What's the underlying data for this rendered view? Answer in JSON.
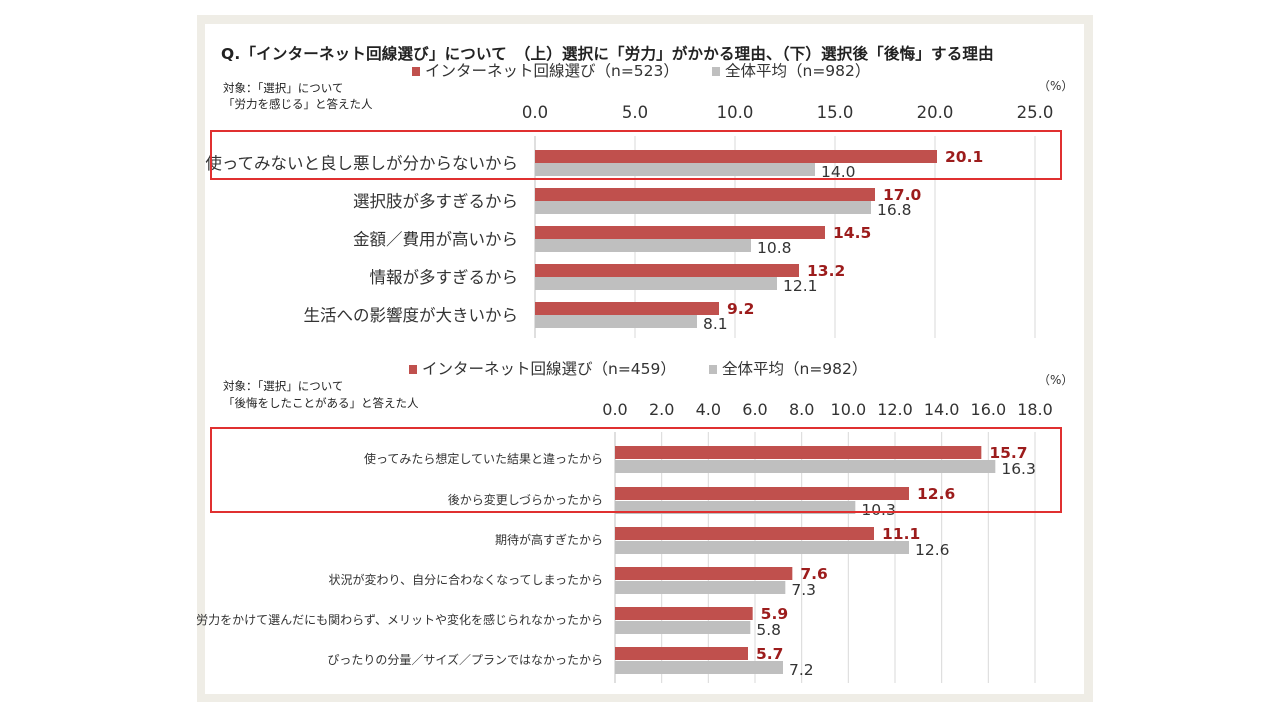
{
  "title": "Q.「インターネット回線選び」について　（上）選択に「労力」がかかる理由、（下）選択後「後悔」する理由",
  "colors": {
    "primary": "#c0504d",
    "secondary": "#bfbfbf",
    "value_primary": "#9c1c1c",
    "value_secondary": "#333333",
    "highlight": "#e03030"
  },
  "chart_data": [
    {
      "type": "bar",
      "orientation": "horizontal",
      "target_line1": "対象：「選択」について",
      "target_line2": "「労力を感じる」と答えた人",
      "unit": "（%）",
      "categories": [
        "使ってみないと良し悪しが分からないから",
        "選択肢が多すぎるから",
        "金額／費用が高いから",
        "情報が多すぎるから",
        "生活への影響度が大きいから"
      ],
      "series": [
        {
          "name": "インターネット回線選び（n=523）",
          "values": [
            20.1,
            17.0,
            14.5,
            13.2,
            9.2
          ],
          "labels": [
            "20.1",
            "17.0",
            "14.5",
            "13.2",
            "9.2"
          ]
        },
        {
          "name": "全体平均（n=982）",
          "values": [
            14.0,
            16.8,
            10.8,
            12.1,
            8.1
          ],
          "labels": [
            "14.0",
            "16.8",
            "10.8",
            "12.1",
            "8.1"
          ]
        }
      ],
      "ticks": [
        "0.0",
        "5.0",
        "10.0",
        "15.0",
        "20.0",
        "25.0"
      ],
      "xlim": [
        0,
        25
      ],
      "highlighted_categories": [
        0
      ]
    },
    {
      "type": "bar",
      "orientation": "horizontal",
      "target_line1": "対象：「選択」について",
      "target_line2": "「後悔をしたことがある」と答えた人",
      "unit": "（%）",
      "categories": [
        "使ってみたら想定していた結果と違ったから",
        "後から変更しづらかったから",
        "期待が高すぎたから",
        "状況が変わり、自分に合わなくなってしまったから",
        "労力をかけて選んだにも関わらず、メリットや変化を感じられなかったから",
        "ぴったりの分量／サイズ／プランではなかったから"
      ],
      "series": [
        {
          "name": "インターネット回線選び（n=459）",
          "values": [
            15.7,
            12.6,
            11.1,
            7.6,
            5.9,
            5.7
          ],
          "labels": [
            "15.7",
            "12.6",
            "11.1",
            "7.6",
            "5.9",
            "5.7"
          ]
        },
        {
          "name": "全体平均（n=982）",
          "values": [
            16.3,
            10.3,
            12.6,
            7.3,
            5.8,
            7.2
          ],
          "labels": [
            "16.3",
            "10.3",
            "12.6",
            "7.3",
            "5.8",
            "7.2"
          ]
        }
      ],
      "ticks": [
        "0.0",
        "2.0",
        "4.0",
        "6.0",
        "8.0",
        "10.0",
        "12.0",
        "14.0",
        "16.0",
        "18.0"
      ],
      "xlim": [
        0,
        18
      ],
      "highlighted_categories": [
        0,
        1
      ]
    }
  ]
}
